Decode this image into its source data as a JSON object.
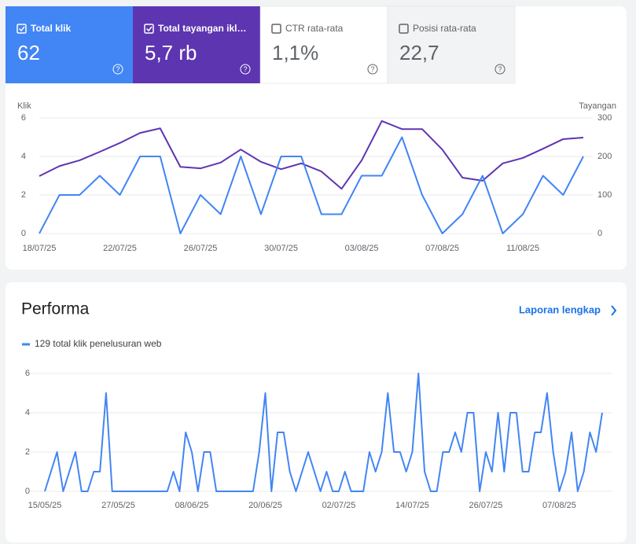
{
  "tiles": [
    {
      "label": "Total klik",
      "value": "62",
      "checked": true,
      "color": "#4285f4"
    },
    {
      "label": "Total tayangan ikl…",
      "value": "5,7 rb",
      "checked": true,
      "color": "#5e35b1"
    },
    {
      "label": "CTR rata-rata",
      "value": "1,1%",
      "checked": false,
      "color": "#ffffff"
    },
    {
      "label": "Posisi rata-rata",
      "value": "22,7",
      "checked": false,
      "color": "#f1f3f4"
    }
  ],
  "card": {
    "title": "Performa",
    "link": "Laporan lengkap"
  },
  "chart_data": [
    {
      "type": "line",
      "ylabel": "Klik",
      "y2label": "Tayangan",
      "categories": [
        "18/07/25",
        null,
        null,
        null,
        "22/07/25",
        null,
        null,
        null,
        "26/07/25",
        null,
        null,
        null,
        "30/07/25",
        null,
        null,
        null,
        "03/08/25",
        null,
        null,
        null,
        "07/08/25",
        null,
        null,
        null,
        "11/08/25",
        null,
        null,
        null
      ],
      "series": [
        {
          "color": "#4285f4",
          "axis": "y",
          "values": [
            0,
            2,
            2,
            3,
            2,
            4,
            4,
            0,
            2,
            1,
            4,
            1,
            4,
            4,
            1,
            1,
            3,
            3,
            5,
            2,
            0,
            1,
            3,
            0,
            1,
            3,
            2,
            4
          ]
        },
        {
          "color": "#5e35b1",
          "axis": "y2",
          "values": [
            149,
            175,
            190,
            212,
            235,
            261,
            273,
            173,
            169,
            184,
            218,
            186,
            167,
            182,
            161,
            116,
            190,
            292,
            271,
            271,
            218,
            145,
            137,
            182,
            196,
            220,
            245,
            249
          ]
        }
      ],
      "ylim": [
        0,
        6
      ],
      "yticks": [
        0,
        2,
        4,
        6
      ],
      "y2lim": [
        0,
        300
      ],
      "y2ticks": [
        0,
        100,
        200,
        300
      ],
      "grid": true
    },
    {
      "type": "line",
      "categories": [
        "15/05/25",
        null,
        null,
        null,
        null,
        null,
        null,
        null,
        null,
        null,
        null,
        null,
        "27/05/25",
        null,
        null,
        null,
        null,
        null,
        null,
        null,
        null,
        null,
        null,
        null,
        "08/06/25",
        null,
        null,
        null,
        null,
        null,
        null,
        null,
        null,
        null,
        null,
        null,
        "20/06/25",
        null,
        null,
        null,
        null,
        null,
        null,
        null,
        null,
        null,
        null,
        null,
        "02/07/25",
        null,
        null,
        null,
        null,
        null,
        null,
        null,
        null,
        null,
        null,
        null,
        "14/07/25",
        null,
        null,
        null,
        null,
        null,
        null,
        null,
        null,
        null,
        null,
        null,
        "26/07/25",
        null,
        null,
        null,
        null,
        null,
        null,
        null,
        null,
        null,
        null,
        null,
        "07/08/25",
        null,
        null,
        null,
        null,
        null,
        null,
        null
      ],
      "series": [
        {
          "name": "129 total klik penelusuran web",
          "color": "#4285f4",
          "values": [
            0,
            1,
            2,
            0,
            1,
            2,
            0,
            0,
            1,
            1,
            5,
            0,
            0,
            0,
            0,
            0,
            0,
            0,
            0,
            0,
            0,
            1,
            0,
            3,
            2,
            0,
            2,
            2,
            0,
            0,
            0,
            0,
            0,
            0,
            0,
            2,
            5,
            0,
            3,
            3,
            1,
            0,
            1,
            2,
            1,
            0,
            1,
            0,
            0,
            1,
            0,
            0,
            0,
            2,
            1,
            2,
            5,
            2,
            2,
            1,
            2,
            6,
            1,
            0,
            0,
            2,
            2,
            3,
            2,
            4,
            4,
            0,
            2,
            1,
            4,
            1,
            4,
            4,
            1,
            1,
            3,
            3,
            5,
            2,
            0,
            1,
            3,
            0,
            1,
            3,
            2,
            4
          ]
        }
      ],
      "ylim": [
        0,
        6
      ],
      "yticks": [
        0,
        2,
        4,
        6
      ],
      "grid": true
    }
  ]
}
